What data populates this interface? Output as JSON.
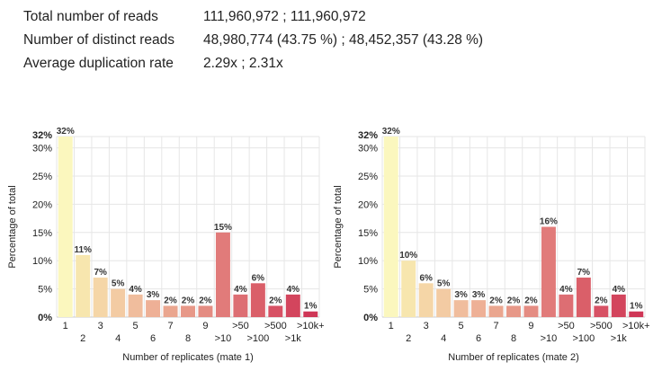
{
  "stats": [
    {
      "label": "Total number of reads",
      "value": "111,960,972 ; 111,960,972"
    },
    {
      "label": "Number of distinct reads",
      "value": "48,980,774 (43.75 %) ; 48,452,357 (43.28 %)"
    },
    {
      "label": "Average duplication rate",
      "value": "2.29x ; 2.31x"
    }
  ],
  "colors": [
    "#fbf7be",
    "#f7e6ae",
    "#f5d6a7",
    "#f3cba3",
    "#f0bd9d",
    "#eeb096",
    "#eaa68f",
    "#e79888",
    "#e48c82",
    "#e17b7a",
    "#dd6e73",
    "#da5f69",
    "#d75164",
    "#d3455d",
    "#cf3656"
  ],
  "chart_data": [
    {
      "type": "bar",
      "categories": [
        "1",
        "2",
        "3",
        "4",
        "5",
        "6",
        "7",
        "8",
        "9",
        ">10",
        ">50",
        ">100",
        ">500",
        ">1k",
        ">10k+"
      ],
      "values": [
        32,
        11,
        7,
        5,
        4,
        3,
        2,
        2,
        2,
        15,
        4,
        6,
        2,
        4,
        1
      ],
      "data_labels": [
        "32%",
        "11%",
        "7%",
        "5%",
        "4%",
        "3%",
        "2%",
        "2%",
        "2%",
        "15%",
        "4%",
        "6%",
        "2%",
        "4%",
        "1%"
      ],
      "title": "",
      "xlabel": "Number of replicates (mate 1)",
      "ylabel": "Percentage of total",
      "ylim": [
        0,
        32
      ],
      "yticks": [
        0,
        5,
        10,
        15,
        20,
        25,
        30,
        32
      ],
      "ytick_labels": [
        "0%",
        "5%",
        "10%",
        "15%",
        "20%",
        "25%",
        "30%",
        "32%"
      ],
      "grid": true
    },
    {
      "type": "bar",
      "categories": [
        "1",
        "2",
        "3",
        "4",
        "5",
        "6",
        "7",
        "8",
        "9",
        ">10",
        ">50",
        ">100",
        ">500",
        ">1k",
        ">10k+"
      ],
      "values": [
        32,
        10,
        6,
        5,
        3,
        3,
        2,
        2,
        2,
        16,
        4,
        7,
        2,
        4,
        1
      ],
      "data_labels": [
        "32%",
        "10%",
        "6%",
        "5%",
        "3%",
        "3%",
        "2%",
        "2%",
        "2%",
        "16%",
        "4%",
        "7%",
        "2%",
        "4%",
        "1%"
      ],
      "title": "",
      "xlabel": "Number of replicates (mate 2)",
      "ylabel": "Percentage of total",
      "ylim": [
        0,
        32
      ],
      "yticks": [
        0,
        5,
        10,
        15,
        20,
        25,
        30,
        32
      ],
      "ytick_labels": [
        "0%",
        "5%",
        "10%",
        "15%",
        "20%",
        "25%",
        "30%",
        "32%"
      ],
      "grid": true
    }
  ]
}
